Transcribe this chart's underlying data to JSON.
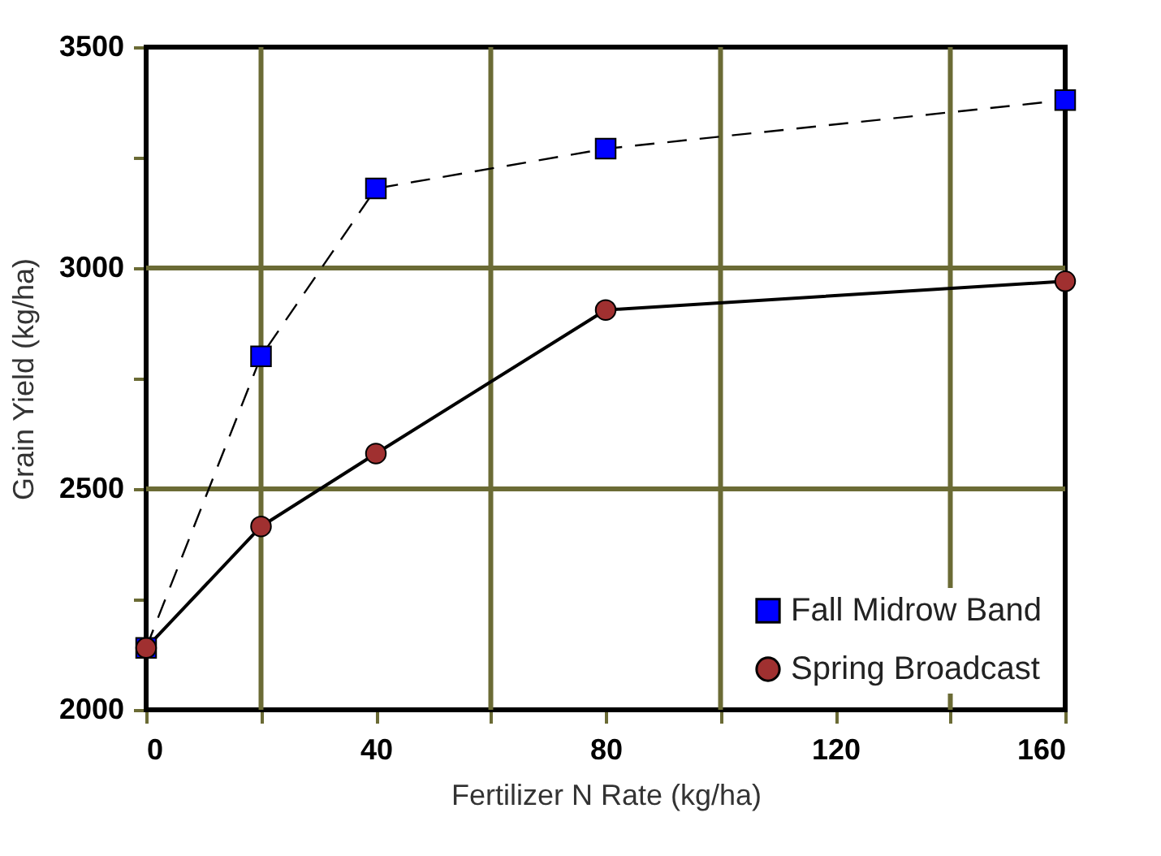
{
  "chart_data": {
    "type": "line",
    "xlabel": "Fertilizer N Rate (kg/ha)",
    "ylabel": "Grain Yield (kg/ha)",
    "xlim": [
      0,
      160
    ],
    "xticks": [
      0,
      {
        "value": 20,
        "label": null
      },
      40,
      {
        "value": 60,
        "label": null
      },
      80,
      {
        "value": 100,
        "label": null
      },
      120,
      {
        "value": 140,
        "label": null
      },
      160
    ],
    "ylim": [
      2000,
      3500
    ],
    "yticks": [
      2000,
      {
        "value": 2250,
        "label": null
      },
      2500,
      {
        "value": 2750,
        "label": null
      },
      3000,
      {
        "value": 3250,
        "label": null
      },
      3500
    ],
    "grid": false,
    "legend": "bottom right",
    "ref_lines": [
      {
        "axis": "x",
        "value": 20,
        "color": "#6b6b35"
      },
      {
        "axis": "x",
        "value": 60,
        "color": "#6b6b35"
      },
      {
        "axis": "x",
        "value": 100,
        "color": "#6b6b35"
      },
      {
        "axis": "x",
        "value": 140,
        "color": "#6b6b35"
      },
      {
        "axis": "y",
        "value": 2500,
        "color": "#6b6b35"
      },
      {
        "axis": "y",
        "value": 3000,
        "color": "#6b6b35"
      }
    ],
    "x": [
      0,
      20,
      40,
      80,
      160
    ],
    "series": [
      {
        "name": "Fall Midrow Band",
        "color": "#0000ff",
        "marker": "square",
        "line_style": "dashed",
        "values": [
          2140,
          2800,
          3180,
          3270,
          3380
        ]
      },
      {
        "name": "Spring Broadcast",
        "color": "#a03030",
        "marker": "circle",
        "line_style": "solid",
        "values": [
          2140,
          2415,
          2580,
          2905,
          2970
        ]
      }
    ]
  }
}
